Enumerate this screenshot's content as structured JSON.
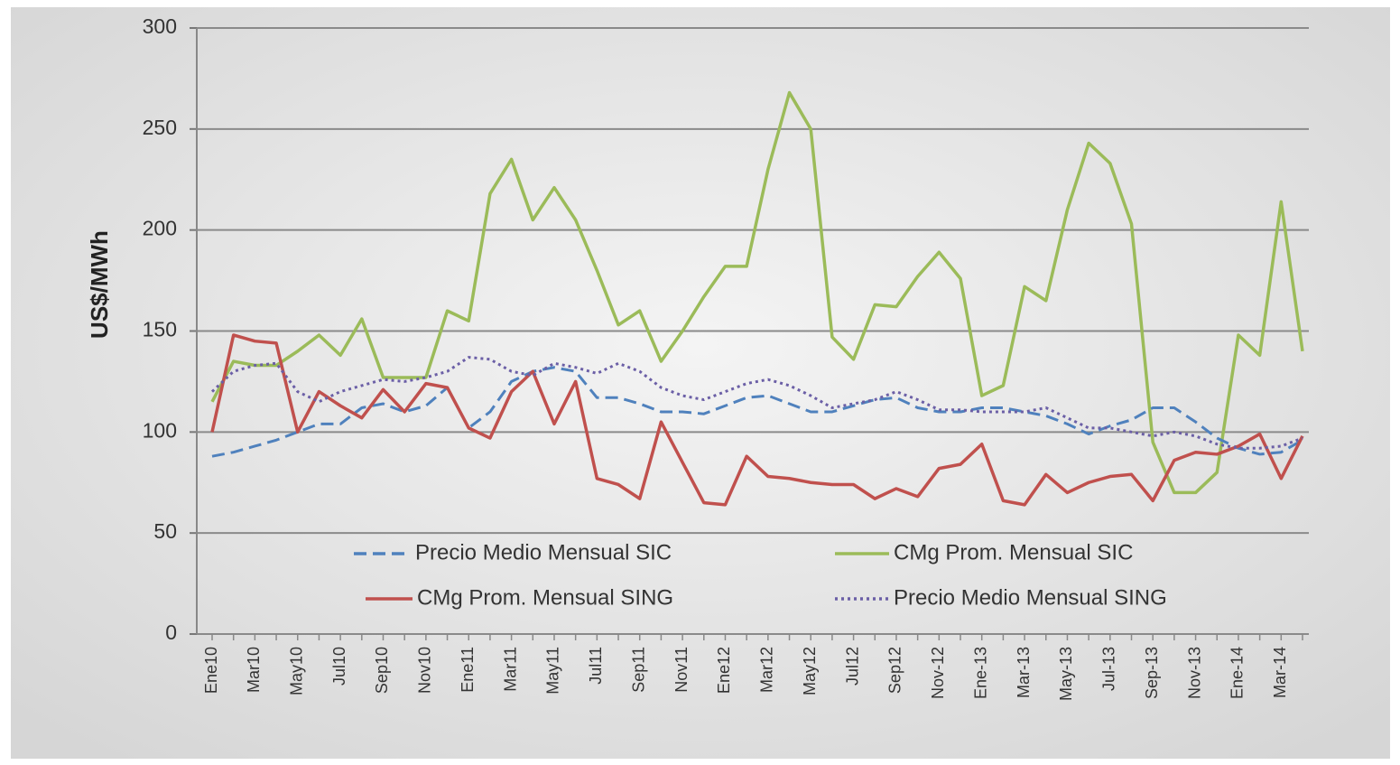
{
  "chart_data": {
    "type": "line",
    "y_label": "US$/MWh",
    "categories": [
      "Ene10",
      null,
      "Mar10",
      null,
      "May10",
      null,
      "Jul10",
      null,
      "Sep10",
      null,
      "Nov10",
      null,
      "Ene11",
      null,
      "Mar11",
      null,
      "May11",
      null,
      "Jul11",
      null,
      "Sep11",
      null,
      "Nov11",
      null,
      "Ene12",
      null,
      "Mar12",
      null,
      "May12",
      null,
      "Jul12",
      null,
      "Sep12",
      null,
      "Nov-12",
      null,
      "Ene-13",
      null,
      "Mar-13",
      null,
      "May-13",
      null,
      "Jul-13",
      null,
      "Sep-13",
      null,
      "Nov-13",
      null,
      "Ene-14",
      null,
      "Mar-14",
      null
    ],
    "series": [
      {
        "name": "Precio Medio Mensual SIC",
        "color": "#4f81bd",
        "style": "dashed",
        "values": [
          88,
          90,
          93,
          96,
          100,
          104,
          104,
          112,
          114,
          110,
          113,
          122,
          102,
          110,
          125,
          130,
          132,
          130,
          117,
          117,
          114,
          110,
          110,
          109,
          113,
          117,
          118,
          114,
          110,
          110,
          113,
          116,
          117,
          112,
          110,
          110,
          112,
          112,
          110,
          108,
          104,
          99,
          103,
          106,
          112,
          112,
          105,
          97,
          92,
          89,
          90,
          96
        ]
      },
      {
        "name": "CMg Prom. Mensual SIC",
        "color": "#9bbb59",
        "style": "solid",
        "values": [
          115,
          135,
          133,
          133,
          140,
          148,
          138,
          156,
          127,
          127,
          127,
          160,
          155,
          218,
          235,
          205,
          221,
          205,
          180,
          153,
          160,
          135,
          150,
          167,
          182,
          182,
          230,
          268,
          250,
          147,
          136,
          163,
          162,
          177,
          189,
          176,
          118,
          123,
          172,
          165,
          210,
          243,
          233,
          203,
          95,
          70,
          70,
          80,
          148,
          138,
          214,
          140
        ]
      },
      {
        "name": "CMg Prom. Mensual SING",
        "color": "#c0504d",
        "style": "solid",
        "values": [
          100,
          148,
          145,
          144,
          100,
          120,
          113,
          107,
          121,
          110,
          124,
          122,
          102,
          97,
          120,
          130,
          104,
          125,
          77,
          74,
          67,
          105,
          85,
          65,
          64,
          88,
          78,
          77,
          75,
          74,
          74,
          67,
          72,
          68,
          82,
          84,
          94,
          66,
          64,
          79,
          70,
          75,
          78,
          79,
          66,
          86,
          90,
          89,
          93,
          99,
          77,
          98
        ]
      },
      {
        "name": "Precio Medio Mensual SING",
        "color": "#6b5fa6",
        "style": "dotted",
        "values": [
          120,
          130,
          133,
          134,
          120,
          115,
          120,
          123,
          126,
          125,
          127,
          130,
          137,
          136,
          130,
          128,
          134,
          132,
          129,
          134,
          130,
          122,
          118,
          116,
          120,
          124,
          126,
          123,
          118,
          112,
          114,
          116,
          120,
          116,
          111,
          111,
          110,
          110,
          110,
          112,
          107,
          102,
          102,
          100,
          98,
          100,
          98,
          94,
          92,
          92,
          93,
          97
        ]
      }
    ],
    "ylim": [
      0,
      300
    ],
    "yticks": [
      0,
      50,
      100,
      150,
      200,
      250,
      300
    ],
    "grid": true
  }
}
